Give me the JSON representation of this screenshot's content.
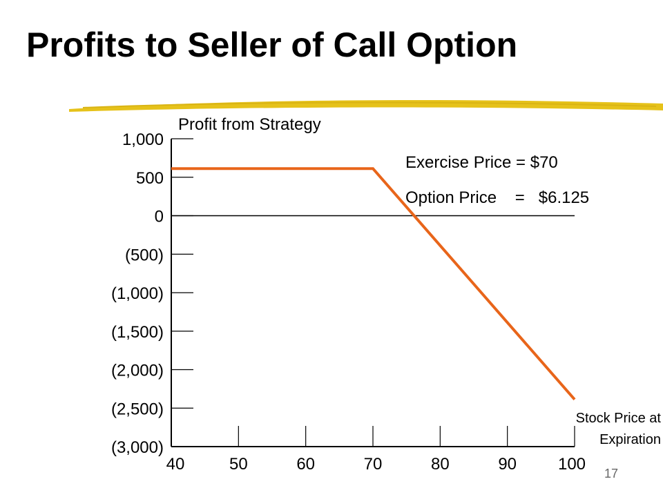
{
  "slide": {
    "title": "Profits to Seller of Call Option",
    "page_number": "17"
  },
  "annotations": {
    "exercise_price": "Exercise Price = $70",
    "option_price": "Option Price    =   $6.125"
  },
  "colors": {
    "line": "#E8651A",
    "accent_underline": "#E6C21A",
    "axis": "#000000"
  },
  "chart_data": {
    "type": "line",
    "title": "",
    "xlabel": "Stock Price at Expiration",
    "ylabel": "Profit from Strategy",
    "x_ticks": [
      40,
      50,
      60,
      70,
      80,
      90,
      100
    ],
    "x_tick_labels": [
      "40",
      "50",
      "60",
      "70",
      "80",
      "90",
      "100"
    ],
    "y_ticks": [
      1000,
      500,
      0,
      -500,
      -1000,
      -1500,
      -2000,
      -2500,
      -3000
    ],
    "y_tick_labels": [
      "1,000",
      "500",
      "0",
      "(500)",
      "(1,000)",
      "(1,500)",
      "(2,000)",
      "(2,500)",
      "(3,000)"
    ],
    "xlim": [
      40,
      100
    ],
    "ylim": [
      -3000,
      1000
    ],
    "grid": false,
    "series": [
      {
        "x": [
          40,
          70,
          100
        ],
        "y": [
          612.5,
          612.5,
          -2387.5
        ]
      }
    ]
  }
}
